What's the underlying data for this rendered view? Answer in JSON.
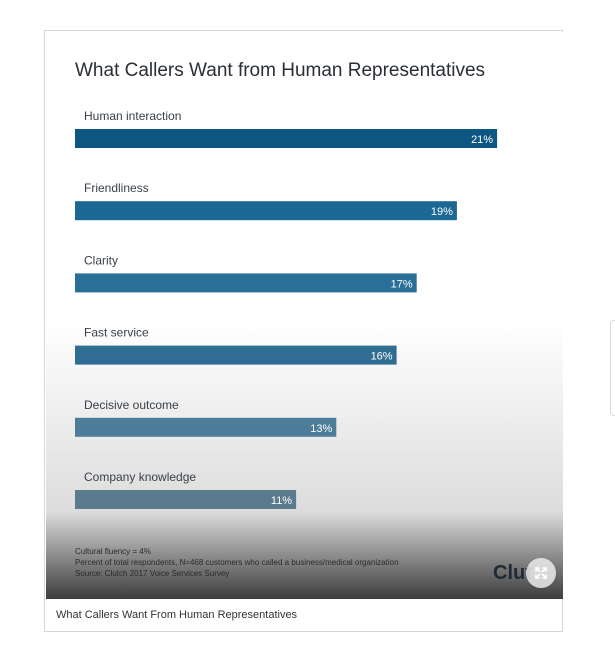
{
  "figure": {
    "caption": "What Callers Want From Human Representatives",
    "logo_text": "Clut",
    "expand_icon": "expand-arrows-icon",
    "notes": [
      "Cultural fluency = 4%",
      "Percent of total respondents, N=468 customers who called a business/medical organization",
      "Source: Clutch 2017 Voice Services Survey"
    ]
  },
  "chart_data": {
    "type": "bar",
    "orientation": "horizontal",
    "title": "What Callers Want from Human Representatives",
    "xlabel": "",
    "ylabel": "",
    "unit": "%",
    "xlim": [
      0,
      22
    ],
    "grid": false,
    "categories": [
      "Human interaction",
      "Friendliness",
      "Clarity",
      "Fast service",
      "Decisive outcome",
      "Company knowledge"
    ],
    "values": [
      21,
      19,
      17,
      16,
      13,
      11
    ],
    "value_labels": [
      "21%",
      "19%",
      "17%",
      "16%",
      "13%",
      "11%"
    ],
    "colors": [
      "#0d5682",
      "#1c6894",
      "#2a6f98",
      "#2f6d93",
      "#4e7d99",
      "#5a7a8d"
    ]
  }
}
